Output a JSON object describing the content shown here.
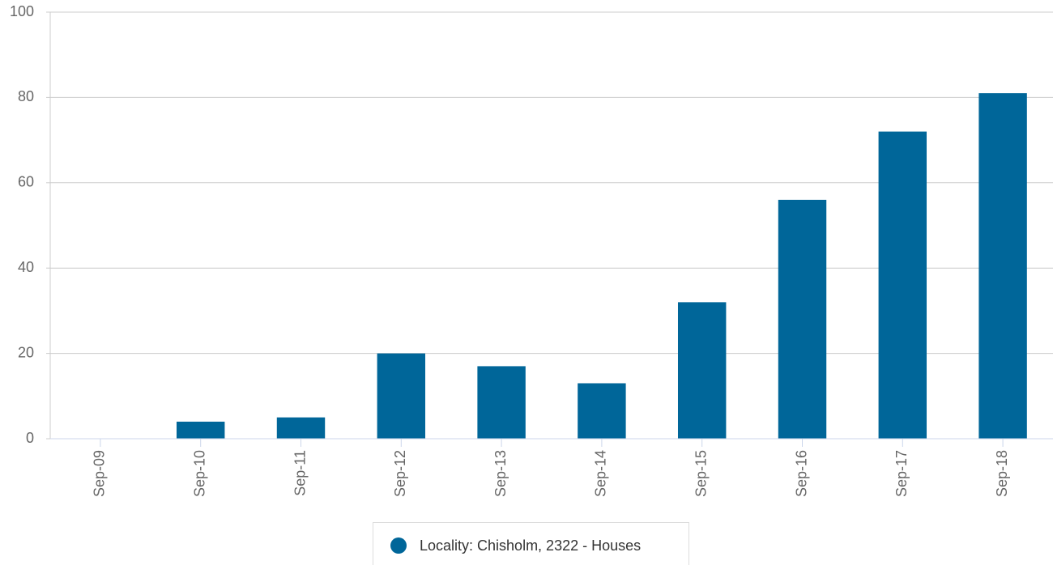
{
  "chart_data": {
    "type": "bar",
    "categories": [
      "Sep-09",
      "Sep-10",
      "Sep-11",
      "Sep-12",
      "Sep-13",
      "Sep-14",
      "Sep-15",
      "Sep-16",
      "Sep-17",
      "Sep-18"
    ],
    "series": [
      {
        "name": "Locality: Chisholm, 2322 - Houses",
        "color": "#006699",
        "values": [
          0,
          4,
          5,
          20,
          17,
          13,
          32,
          56,
          72,
          81
        ]
      }
    ],
    "ylim": [
      0,
      100
    ],
    "yticks": [
      0,
      20,
      40,
      60,
      80,
      100
    ],
    "grid": true,
    "legend": "bottom"
  }
}
